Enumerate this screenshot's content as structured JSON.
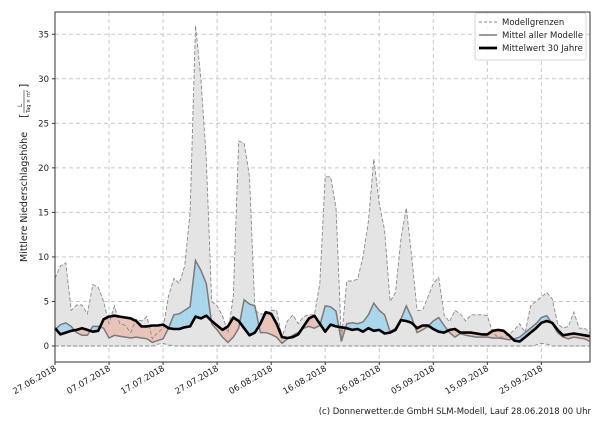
{
  "chart_data": {
    "type": "area",
    "title": "",
    "xlabel": "",
    "ylabel": "Mittlere Niederschlagshöhe",
    "ylabel_unit_numerator": "L",
    "ylabel_unit_denominator": "Tag × m²",
    "ylim": [
      -1.8,
      37.5
    ],
    "xlim_days": [
      0,
      99
    ],
    "yticks": [
      0,
      5,
      10,
      15,
      20,
      25,
      30,
      35
    ],
    "xticks": [
      {
        "day": 0,
        "label": "27.06.2018"
      },
      {
        "day": 10,
        "label": "07.07.2018"
      },
      {
        "day": 20,
        "label": "17.07.2018"
      },
      {
        "day": 30,
        "label": "27.07.2018"
      },
      {
        "day": 40,
        "label": "06.08.2018"
      },
      {
        "day": 50,
        "label": "16.08.2018"
      },
      {
        "day": 60,
        "label": "26.08.2018"
      },
      {
        "day": 70,
        "label": "05.09.2018"
      },
      {
        "day": 80,
        "label": "15.09.2018"
      },
      {
        "day": 90,
        "label": "25.09.2018"
      }
    ],
    "grid": true,
    "legend_position": "top-right",
    "legend": [
      {
        "name": "Modellgrenzen",
        "style": "dashed"
      },
      {
        "name": "Mittel aller Modelle",
        "style": "gray"
      },
      {
        "name": "Mittelwert 30 Jahre",
        "style": "black-thick"
      }
    ],
    "colors": {
      "range": "#e4e4e4",
      "above": "#a9d6eb",
      "below": "#e9c3b8",
      "mean": "#7a7a7a",
      "clim": "#000000",
      "bounds": "#8a8a8a"
    },
    "series": {
      "upper": [
        7.6,
        9,
        9.3,
        4,
        4.6,
        4.6,
        3.6,
        6.9,
        6.6,
        5,
        2.5,
        4.5,
        2.5,
        2.3,
        1.5,
        3,
        2.8,
        3.3,
        0.8,
        1.5,
        2,
        5.6,
        7.6,
        7,
        9,
        15,
        36,
        30,
        21,
        5,
        4.5,
        3.4,
        1.5,
        5.5,
        23,
        22.8,
        19,
        4,
        3.6,
        3.6,
        4,
        4,
        1,
        2.8,
        3.5,
        2.5,
        3.3,
        3.5,
        3.5,
        7,
        19,
        19,
        15.5,
        0.7,
        7.3,
        7.3,
        7.5,
        10,
        14,
        21,
        16,
        13,
        5,
        6,
        12,
        15.5,
        10,
        4,
        4,
        5.5,
        7,
        7.7,
        3.5,
        2.7,
        4,
        3.6,
        2.8,
        3.5,
        3.5,
        3.5,
        3.4,
        1.5,
        1,
        1,
        1.3,
        1.8,
        2.5,
        1.5,
        4.5,
        5,
        5.5,
        6,
        5.3,
        2.5,
        2,
        2.2,
        3.8,
        2,
        2,
        1.5
      ],
      "lower": [
        0,
        0,
        0,
        0,
        0,
        0,
        0,
        0,
        0,
        0,
        0,
        0,
        0,
        0,
        0,
        0,
        0,
        0,
        0,
        0.2,
        0.3,
        0.1,
        0,
        0,
        0,
        0,
        0,
        0,
        0,
        0,
        0,
        0,
        0,
        0,
        0,
        0,
        0,
        0,
        0,
        0,
        0,
        0,
        0,
        0,
        0,
        0,
        0,
        0,
        0,
        0,
        0,
        0,
        0,
        0,
        0,
        0,
        0,
        0,
        0,
        0,
        0,
        0,
        0,
        0,
        0,
        0,
        0,
        0,
        0,
        0,
        0,
        0,
        0,
        0,
        0,
        0,
        0,
        0,
        0,
        0,
        0,
        0,
        0,
        0,
        0,
        0,
        0,
        0,
        0,
        0.1,
        0.3,
        0.2,
        0,
        0,
        0,
        0,
        0,
        0,
        0,
        0
      ],
      "mean": [
        1.8,
        2.4,
        2.6,
        2.2,
        1.5,
        1.2,
        1.2,
        2.2,
        2.2,
        2,
        0.9,
        1.2,
        1.1,
        1,
        0.9,
        1,
        0.9,
        0.8,
        0.4,
        0.6,
        0.8,
        2,
        3.5,
        3.6,
        4,
        4.4,
        9.6,
        8.5,
        7,
        2.5,
        1.8,
        1,
        0.4,
        1,
        2,
        5.2,
        4.7,
        4.5,
        1.5,
        1.5,
        1.3,
        1,
        0.3,
        0.8,
        1.2,
        1.5,
        2,
        2.2,
        2,
        2.3,
        4.5,
        4.4,
        3.9,
        0.5,
        2.5,
        2.6,
        2.5,
        2.7,
        3.5,
        4.8,
        4,
        3.5,
        1.6,
        2,
        3,
        4.5,
        3.2,
        1.5,
        1.8,
        2.2,
        2.8,
        3.2,
        2.3,
        1.5,
        1,
        1.4,
        1.2,
        1.1,
        1,
        1,
        1,
        0.9,
        0.9,
        0.8,
        0.7,
        0.8,
        1,
        1.5,
        2,
        2.5,
        3.2,
        3.4,
        2.5,
        1.5,
        1,
        0.8,
        1,
        0.9,
        0.8,
        0.5
      ],
      "clim": [
        2,
        1.3,
        1.5,
        1.7,
        1.8,
        2,
        1.8,
        1.6,
        1.7,
        3,
        3.3,
        3.4,
        3.3,
        3.2,
        3.1,
        2.8,
        2.2,
        2.2,
        2.3,
        2.3,
        2.4,
        2,
        1.9,
        1.9,
        2.1,
        2.2,
        3.3,
        3.1,
        3.4,
        2.8,
        2.3,
        1.8,
        2.2,
        3.2,
        2.8,
        2,
        1.2,
        1.5,
        2.5,
        3.8,
        3.6,
        2.5,
        1,
        0.9,
        1,
        1.3,
        2.2,
        3.1,
        3.4,
        2.5,
        1.6,
        2.4,
        2.2,
        2.1,
        2,
        1.8,
        1.9,
        1.6,
        2,
        1.7,
        1.8,
        1.4,
        1.5,
        1.8,
        2.9,
        2.8,
        2.6,
        2,
        2.3,
        2.3,
        1.9,
        1.6,
        1.5,
        1.8,
        1.9,
        1.5,
        1.5,
        1.5,
        1.4,
        1.3,
        1.3,
        1.7,
        1.8,
        1.7,
        1.2,
        0.6,
        0.5,
        1,
        1.5,
        2,
        2.6,
        2.8,
        2.6,
        1.8,
        1.2,
        1.3,
        1.4,
        1.3,
        1.2,
        1.1
      ]
    }
  },
  "footer": "(c) Donnerwetter.de GmbH SLM-Modell, Lauf 28.06.2018 00 Uhr"
}
